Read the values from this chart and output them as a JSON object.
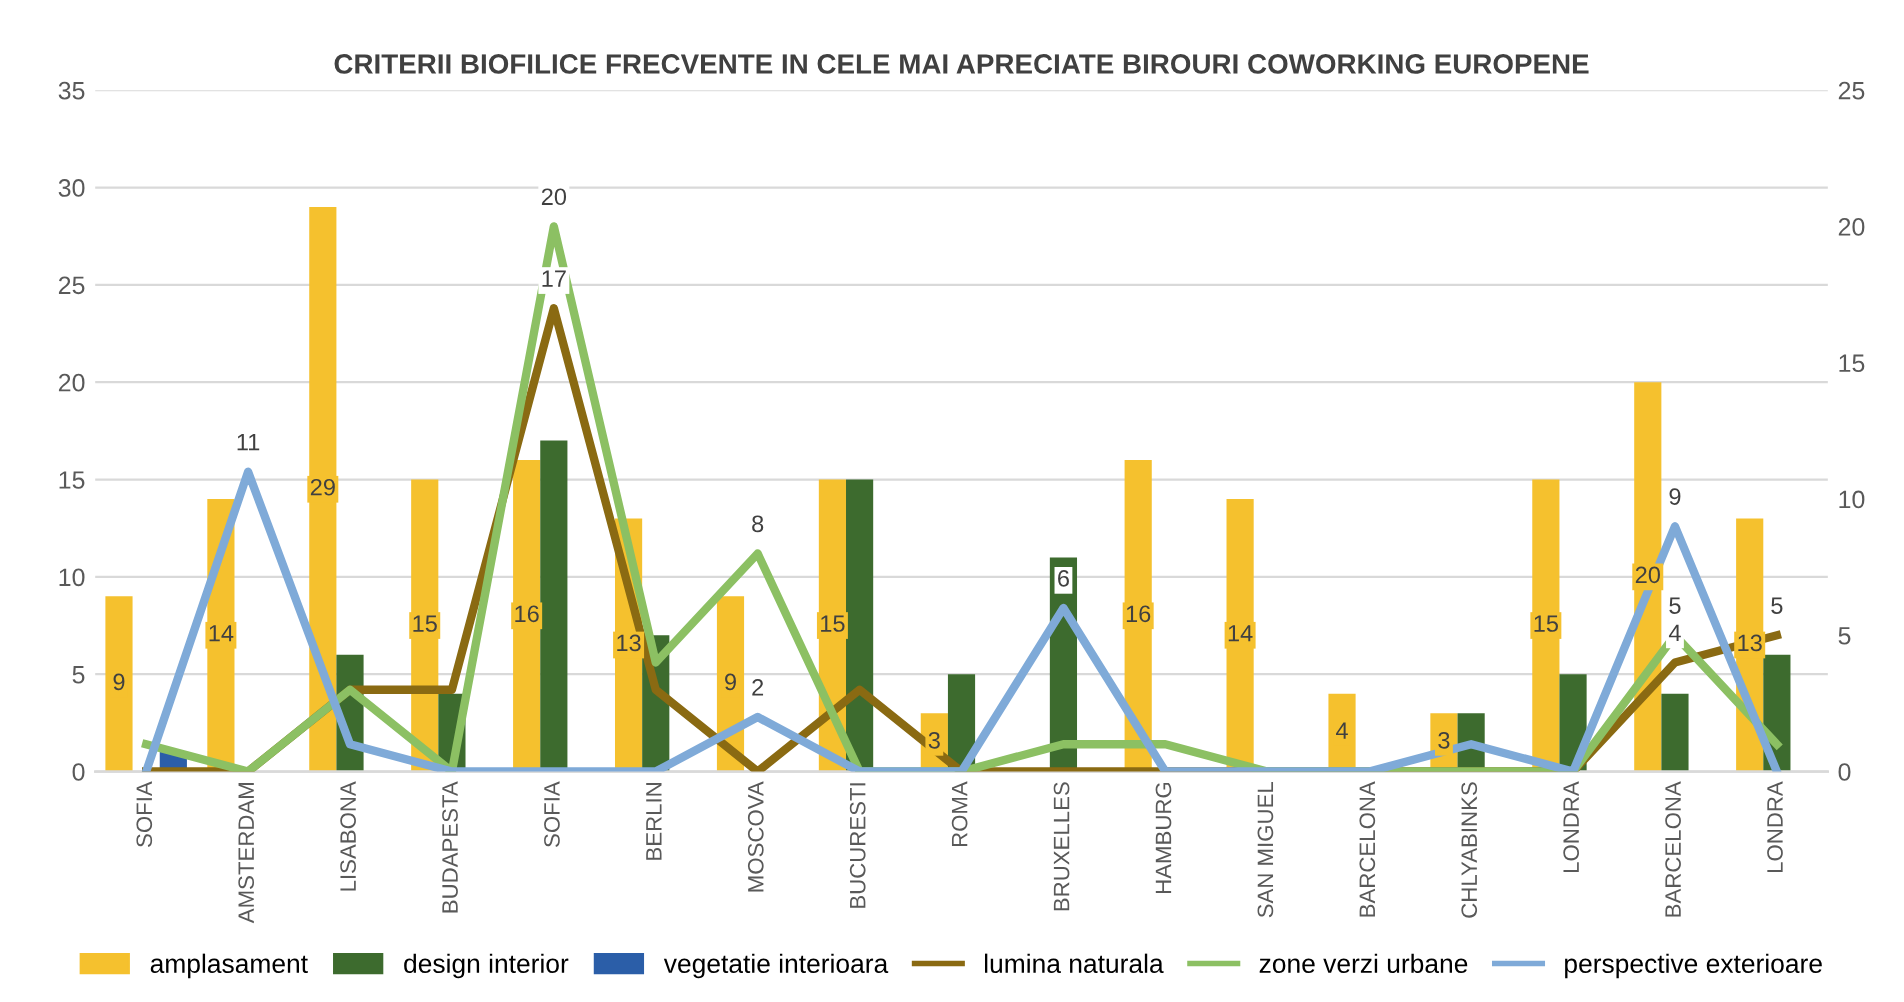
{
  "chart_data": {
    "type": "bar",
    "title": "CRITERII BIOFILICE FRECVENTE IN CELE MAI APRECIATE BIROURI COWORKING EUROPENE",
    "categories": [
      "SOFIA",
      "AMSTERDAM",
      "LISABONA",
      "BUDAPESTA",
      "SOFIA",
      "BERLIN",
      "MOSCOVA",
      "BUCURESTI",
      "ROMA",
      "BRUXELLES",
      "HAMBURG",
      "SAN MIGUEL",
      "BARCELONA",
      "CHLYABINKS",
      "LONDRA",
      "BARCELONA",
      "LONDRA"
    ],
    "series": [
      {
        "name": "amplasament",
        "color": "#f5c12e",
        "values": [
          9,
          14,
          29,
          15,
          16,
          13,
          9,
          15,
          3,
          0,
          16,
          14,
          4,
          3,
          15,
          20,
          13
        ],
        "value_labels": [
          "9",
          "14",
          "29",
          "15",
          "16",
          "13",
          "9",
          "15",
          "3",
          null,
          "16",
          "14",
          "4",
          "3",
          "15",
          "20",
          "13"
        ]
      },
      {
        "name": "design interior",
        "color": "#3d6b2e",
        "values": [
          0,
          0,
          6,
          4,
          17,
          7,
          0,
          15,
          5,
          11,
          0,
          0,
          0,
          3,
          5,
          4,
          6
        ]
      },
      {
        "name": "vegetatie interioara",
        "color": "#2b5ea8",
        "values": [
          1,
          0,
          0,
          0,
          0,
          0,
          0,
          0,
          0,
          0,
          0,
          0,
          0,
          0,
          0,
          0,
          0
        ]
      },
      {
        "name": "lumina naturala",
        "type": "line",
        "axis": "y2",
        "color": "#8a6a12",
        "values": [
          0,
          0,
          3,
          3,
          17,
          3,
          0,
          3,
          0,
          0,
          0,
          0,
          0,
          0,
          0,
          4,
          5
        ],
        "value_labels": [
          null,
          null,
          null,
          null,
          "17",
          null,
          null,
          null,
          null,
          null,
          null,
          null,
          null,
          null,
          null,
          "4",
          "5"
        ]
      },
      {
        "name": "zone verzi urbane",
        "type": "line",
        "axis": "y2",
        "color": "#8cc063",
        "values": [
          1,
          0,
          3,
          0,
          20,
          4,
          8,
          0,
          0,
          1,
          1,
          0,
          0,
          0,
          0,
          5,
          1
        ],
        "value_labels": [
          null,
          null,
          null,
          null,
          "20",
          null,
          "8",
          null,
          null,
          null,
          null,
          null,
          null,
          null,
          null,
          "5",
          null
        ]
      },
      {
        "name": "perspective exterioare",
        "type": "line",
        "axis": "y2",
        "color": "#7faad8",
        "values": [
          0,
          11,
          1,
          0,
          0,
          0,
          2,
          0,
          0,
          6,
          0,
          0,
          0,
          1,
          0,
          9,
          0
        ],
        "value_labels": [
          null,
          "11",
          null,
          null,
          null,
          null,
          "2",
          null,
          null,
          "6",
          null,
          null,
          null,
          null,
          null,
          "9",
          null
        ]
      }
    ],
    "ylim": [
      0,
      35
    ],
    "yticks": [
      0,
      5,
      10,
      15,
      20,
      25,
      30,
      35
    ],
    "y2lim": [
      0,
      25
    ],
    "y2ticks": [
      0,
      5,
      10,
      15,
      20,
      25
    ],
    "grid": "y",
    "legend": "bottom"
  }
}
